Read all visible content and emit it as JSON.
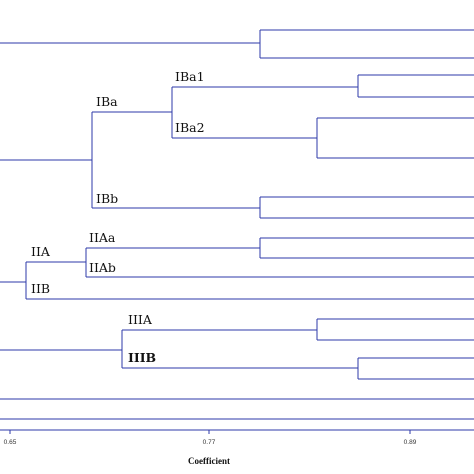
{
  "chart_data": {
    "type": "dendrogram",
    "xlabel": "Coefficient",
    "ticks": [
      {
        "value": 0.65,
        "label": "0.65"
      },
      {
        "value": 0.77,
        "label": "0.77"
      },
      {
        "value": 0.89,
        "label": "0.89"
      }
    ],
    "axis_color": "#2e3aa8",
    "branch_color": "#2e3aa8",
    "cluster_labels": [
      "IBa1",
      "IBa",
      "IBa2",
      "IBb",
      "IIA",
      "IIAa",
      "IIAb",
      "IIB",
      "IIIA",
      "IIIB"
    ]
  }
}
